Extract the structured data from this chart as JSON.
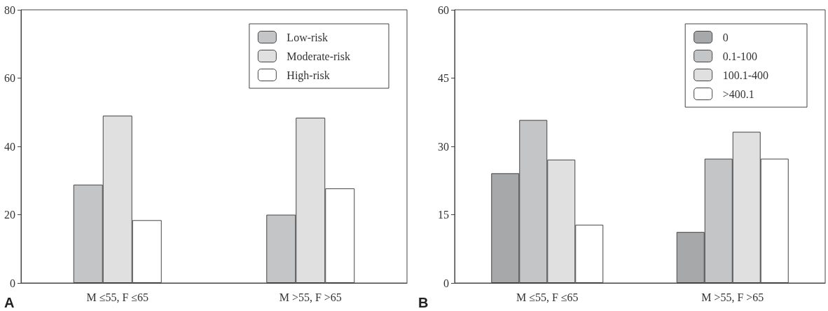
{
  "chart_data": [
    {
      "type": "bar",
      "categories": [
        "M ≤55, F ≤65",
        "M >55, F >65"
      ],
      "series": [
        {
          "name": "Low-risk",
          "color": "#c4c5c7",
          "values": [
            28.8,
            20.0
          ]
        },
        {
          "name": "Moderate-risk",
          "color": "#e0e0e0",
          "values": [
            49.0,
            48.4
          ]
        },
        {
          "name": "High-risk",
          "color": "#ffffff",
          "values": [
            18.4,
            27.7
          ]
        }
      ],
      "ylim": [
        0,
        80
      ],
      "yticks": [
        0,
        20,
        40,
        60,
        80
      ],
      "grid": false,
      "legend": "top right",
      "annotations": [
        "A"
      ]
    },
    {
      "type": "bar",
      "categories": [
        "M ≤55, F ≤65",
        "M >55, F >65"
      ],
      "series": [
        {
          "name": "0",
          "color": "#a7a8aa",
          "values": [
            24.1,
            11.2
          ]
        },
        {
          "name": "0.1-100",
          "color": "#c4c5c7",
          "values": [
            35.8,
            27.3
          ]
        },
        {
          "name": "100.1-400",
          "color": "#e0e0e0",
          "values": [
            27.1,
            33.2
          ]
        },
        {
          "name": ">400.1",
          "color": "#ffffff",
          "values": [
            12.8,
            27.3
          ]
        }
      ],
      "ylim": [
        0,
        60
      ],
      "yticks": [
        0,
        15,
        30,
        45,
        60
      ],
      "grid": false,
      "legend": "top right",
      "annotations": [
        "B"
      ]
    }
  ]
}
